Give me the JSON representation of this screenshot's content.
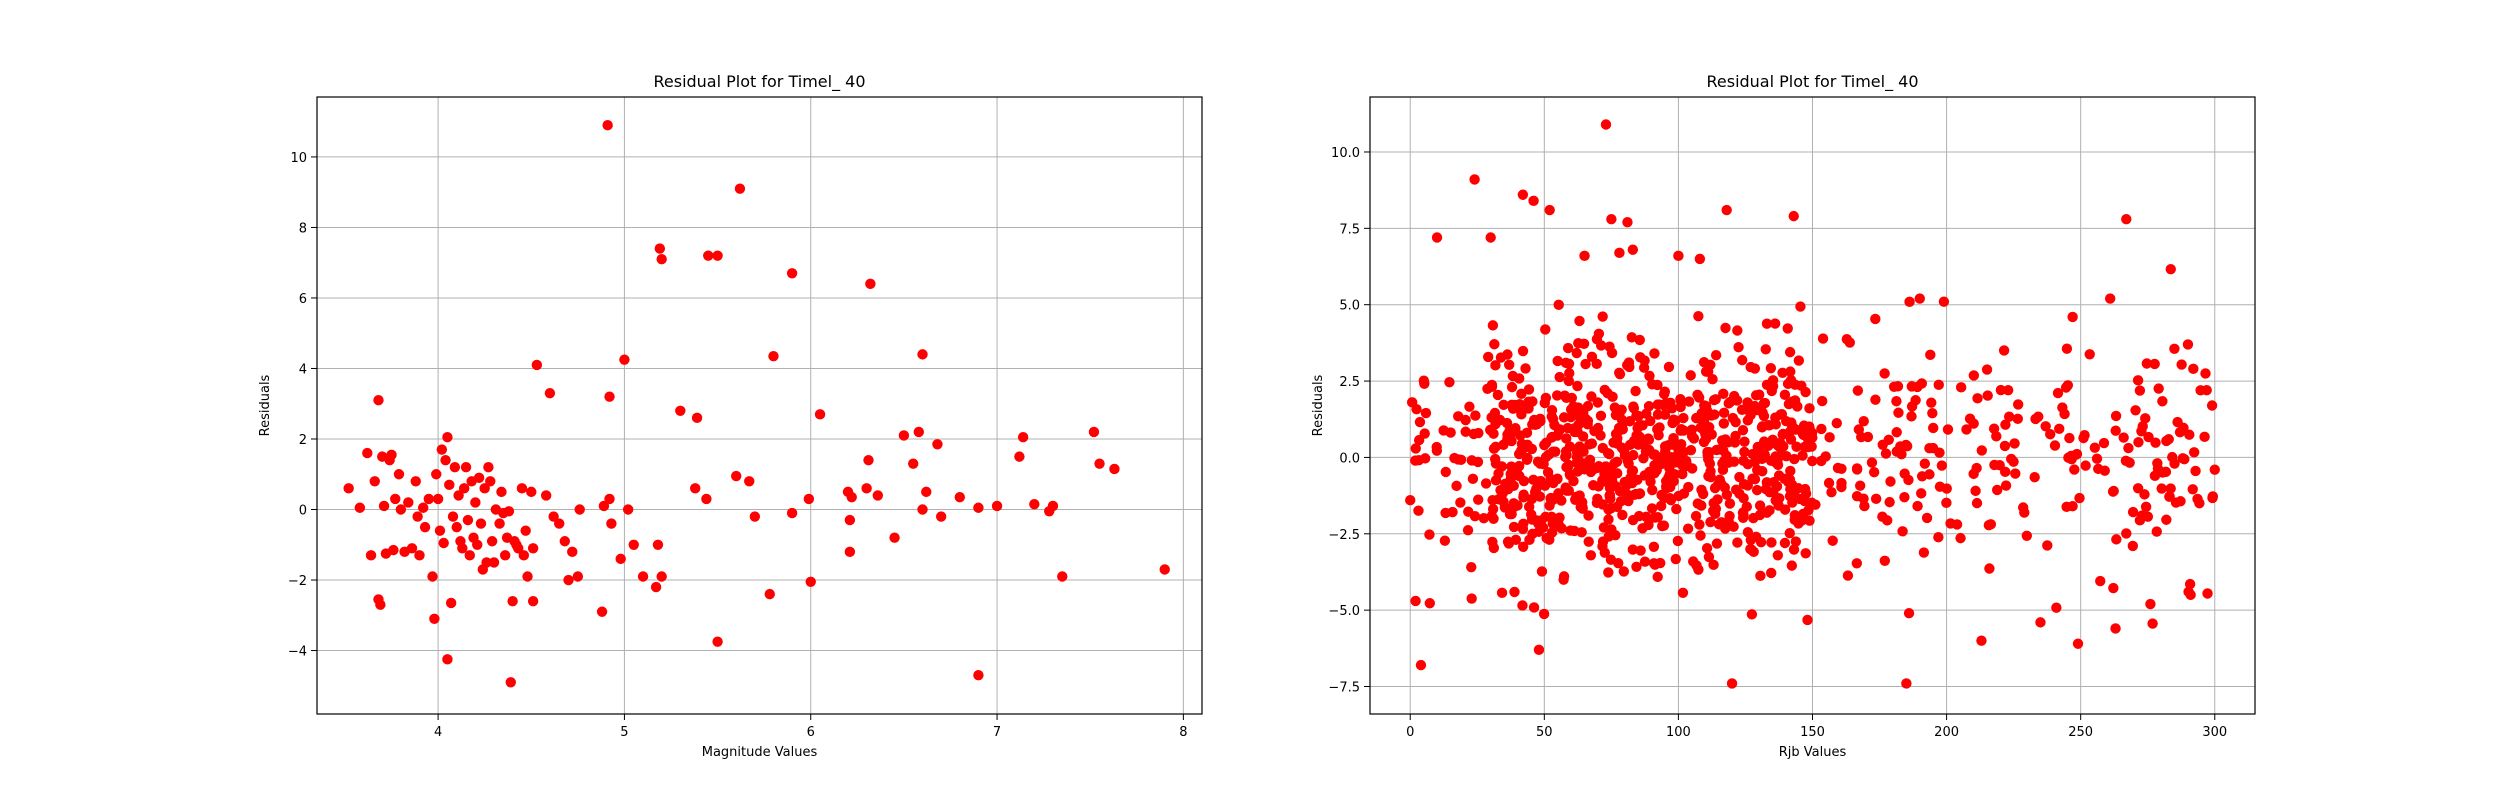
{
  "chart_data": [
    {
      "type": "scatter",
      "title": "Residual Plot for Timel_ 40",
      "xlabel": "Magnitude Values",
      "ylabel": "Residuals",
      "xlim": [
        3.35,
        8.1
      ],
      "ylim": [
        -5.8,
        11.7
      ],
      "xticks": [
        4,
        5,
        6,
        7,
        8
      ],
      "yticks": [
        -4,
        -2,
        0,
        2,
        4,
        6,
        8,
        10
      ],
      "grid": true,
      "marker_color": "#ff0000",
      "points": [
        [
          3.52,
          0.6
        ],
        [
          3.58,
          0.05
        ],
        [
          3.62,
          1.6
        ],
        [
          3.64,
          -1.3
        ],
        [
          3.66,
          0.8
        ],
        [
          3.68,
          3.1
        ],
        [
          3.68,
          -2.55
        ],
        [
          3.69,
          -2.7
        ],
        [
          3.7,
          1.5
        ],
        [
          3.71,
          0.1
        ],
        [
          3.72,
          -1.25
        ],
        [
          3.74,
          1.4
        ],
        [
          3.75,
          1.55
        ],
        [
          3.76,
          -1.15
        ],
        [
          3.77,
          0.3
        ],
        [
          3.79,
          1.0
        ],
        [
          3.8,
          0.0
        ],
        [
          3.82,
          -1.2
        ],
        [
          3.84,
          0.2
        ],
        [
          3.86,
          -1.1
        ],
        [
          3.88,
          0.8
        ],
        [
          3.89,
          -0.2
        ],
        [
          3.9,
          -1.3
        ],
        [
          3.92,
          0.05
        ],
        [
          3.93,
          -0.5
        ],
        [
          3.95,
          0.3
        ],
        [
          3.97,
          -1.9
        ],
        [
          3.98,
          -3.1
        ],
        [
          3.99,
          1.0
        ],
        [
          4.0,
          0.3
        ],
        [
          4.01,
          -0.6
        ],
        [
          4.02,
          1.7
        ],
        [
          4.03,
          -0.95
        ],
        [
          4.04,
          1.4
        ],
        [
          4.05,
          2.05
        ],
        [
          4.05,
          -4.25
        ],
        [
          4.06,
          0.7
        ],
        [
          4.07,
          -2.65
        ],
        [
          4.08,
          -0.2
        ],
        [
          4.09,
          1.2
        ],
        [
          4.1,
          -0.5
        ],
        [
          4.11,
          0.4
        ],
        [
          4.12,
          -0.9
        ],
        [
          4.13,
          -1.1
        ],
        [
          4.14,
          0.6
        ],
        [
          4.15,
          1.2
        ],
        [
          4.16,
          -0.3
        ],
        [
          4.17,
          -1.3
        ],
        [
          4.18,
          0.8
        ],
        [
          4.19,
          -0.8
        ],
        [
          4.2,
          0.2
        ],
        [
          4.21,
          -1.0
        ],
        [
          4.22,
          0.9
        ],
        [
          4.23,
          -0.4
        ],
        [
          4.24,
          -1.7
        ],
        [
          4.25,
          0.6
        ],
        [
          4.26,
          -1.5
        ],
        [
          4.27,
          1.2
        ],
        [
          4.28,
          0.8
        ],
        [
          4.29,
          -0.9
        ],
        [
          4.3,
          -1.5
        ],
        [
          4.31,
          0.0
        ],
        [
          4.33,
          -0.4
        ],
        [
          4.34,
          0.5
        ],
        [
          4.35,
          -0.1
        ],
        [
          4.36,
          -1.3
        ],
        [
          4.37,
          -0.8
        ],
        [
          4.38,
          -0.05
        ],
        [
          4.39,
          -4.9
        ],
        [
          4.4,
          -2.6
        ],
        [
          4.41,
          -0.9
        ],
        [
          4.42,
          -1.0
        ],
        [
          4.43,
          -1.1
        ],
        [
          4.45,
          0.6
        ],
        [
          4.46,
          -1.3
        ],
        [
          4.47,
          -0.6
        ],
        [
          4.48,
          -1.9
        ],
        [
          4.5,
          0.5
        ],
        [
          4.51,
          -1.1
        ],
        [
          4.51,
          -2.6
        ],
        [
          4.53,
          4.1
        ],
        [
          4.58,
          0.4
        ],
        [
          4.6,
          3.3
        ],
        [
          4.62,
          -0.2
        ],
        [
          4.65,
          -0.4
        ],
        [
          4.68,
          -0.9
        ],
        [
          4.7,
          -2.0
        ],
        [
          4.72,
          -1.2
        ],
        [
          4.75,
          -1.9
        ],
        [
          4.76,
          0.0
        ],
        [
          4.88,
          -2.9
        ],
        [
          4.89,
          0.1
        ],
        [
          4.91,
          10.9
        ],
        [
          4.92,
          0.3
        ],
        [
          4.92,
          3.2
        ],
        [
          4.93,
          -0.4
        ],
        [
          4.98,
          -1.4
        ],
        [
          5.0,
          4.25
        ],
        [
          5.02,
          0.0
        ],
        [
          5.05,
          -1.0
        ],
        [
          5.1,
          -1.9
        ],
        [
          5.17,
          -2.2
        ],
        [
          5.18,
          -1.0
        ],
        [
          5.19,
          7.4
        ],
        [
          5.2,
          7.1
        ],
        [
          5.2,
          -1.9
        ],
        [
          5.3,
          2.8
        ],
        [
          5.38,
          0.6
        ],
        [
          5.39,
          2.6
        ],
        [
          5.44,
          0.3
        ],
        [
          5.45,
          7.2
        ],
        [
          5.5,
          7.2
        ],
        [
          5.5,
          -3.75
        ],
        [
          5.6,
          0.95
        ],
        [
          5.62,
          9.1
        ],
        [
          5.67,
          0.8
        ],
        [
          5.7,
          -0.2
        ],
        [
          5.78,
          -2.4
        ],
        [
          5.8,
          4.35
        ],
        [
          5.9,
          6.7
        ],
        [
          5.9,
          -0.1
        ],
        [
          5.99,
          0.3
        ],
        [
          6.0,
          -2.05
        ],
        [
          6.05,
          2.7
        ],
        [
          6.2,
          0.5
        ],
        [
          6.21,
          -0.3
        ],
        [
          6.21,
          -1.2
        ],
        [
          6.22,
          0.35
        ],
        [
          6.3,
          0.6
        ],
        [
          6.31,
          1.4
        ],
        [
          6.32,
          6.4
        ],
        [
          6.36,
          0.4
        ],
        [
          6.45,
          -0.8
        ],
        [
          6.5,
          2.1
        ],
        [
          6.55,
          1.3
        ],
        [
          6.58,
          2.2
        ],
        [
          6.6,
          4.4
        ],
        [
          6.6,
          0.0
        ],
        [
          6.62,
          0.5
        ],
        [
          6.68,
          1.85
        ],
        [
          6.7,
          -0.2
        ],
        [
          6.8,
          0.35
        ],
        [
          6.9,
          -4.7
        ],
        [
          6.9,
          0.05
        ],
        [
          7.0,
          0.1
        ],
        [
          7.12,
          1.5
        ],
        [
          7.14,
          2.05
        ],
        [
          7.2,
          0.15
        ],
        [
          7.28,
          -0.05
        ],
        [
          7.3,
          0.1
        ],
        [
          7.35,
          -1.9
        ],
        [
          7.52,
          2.2
        ],
        [
          7.55,
          1.3
        ],
        [
          7.63,
          1.15
        ],
        [
          7.9,
          -1.7
        ]
      ]
    },
    {
      "type": "scatter",
      "title": "Residual Plot for Timel_ 40",
      "xlabel": "Rjb Values",
      "ylabel": "Residuals",
      "xlim": [
        -15,
        315
      ],
      "ylim": [
        -8.4,
        11.8
      ],
      "xticks": [
        0,
        50,
        100,
        150,
        200,
        250,
        300
      ],
      "yticks": [
        -7.5,
        -5.0,
        -2.5,
        0.0,
        2.5,
        5.0,
        7.5,
        10.0
      ],
      "ytick_labels": [
        "−7.5",
        "−5.0",
        "−2.5",
        "0.0",
        "2.5",
        "5.0",
        "7.5",
        "10.0"
      ],
      "grid": true,
      "marker_color": "#ff0000",
      "random_points": {
        "count": 1050,
        "note_x_range": [
          0,
          300
        ],
        "mean": 0.0
      },
      "points": [
        [
          73,
          10.9
        ],
        [
          24,
          9.1
        ],
        [
          42,
          8.6
        ],
        [
          46,
          8.4
        ],
        [
          52,
          8.1
        ],
        [
          118,
          8.1
        ],
        [
          143,
          7.9
        ],
        [
          267,
          7.8
        ],
        [
          81,
          7.7
        ],
        [
          75,
          7.8
        ],
        [
          30,
          7.2
        ],
        [
          65,
          6.6
        ],
        [
          78,
          6.7
        ],
        [
          83,
          6.8
        ],
        [
          100,
          6.6
        ],
        [
          108,
          6.5
        ],
        [
          4,
          -6.8
        ],
        [
          48,
          -6.3
        ],
        [
          2,
          -4.7
        ],
        [
          0,
          -1.4
        ],
        [
          120,
          -7.4
        ],
        [
          185,
          -7.4
        ],
        [
          213,
          -6.0
        ],
        [
          249,
          -6.1
        ],
        [
          263,
          -5.6
        ],
        [
          186,
          -5.1
        ],
        [
          235,
          -5.4
        ],
        [
          276,
          -4.8
        ],
        [
          291,
          -4.5
        ],
        [
          300,
          -0.4
        ],
        [
          299,
          1.7
        ],
        [
          297,
          2.2
        ],
        [
          292,
          2.9
        ],
        [
          290,
          3.7
        ],
        [
          285,
          -0.2
        ],
        [
          261,
          5.2
        ],
        [
          247,
          4.6
        ],
        [
          199,
          5.1
        ],
        [
          190,
          5.2
        ],
        [
          10,
          7.2
        ]
      ]
    }
  ]
}
